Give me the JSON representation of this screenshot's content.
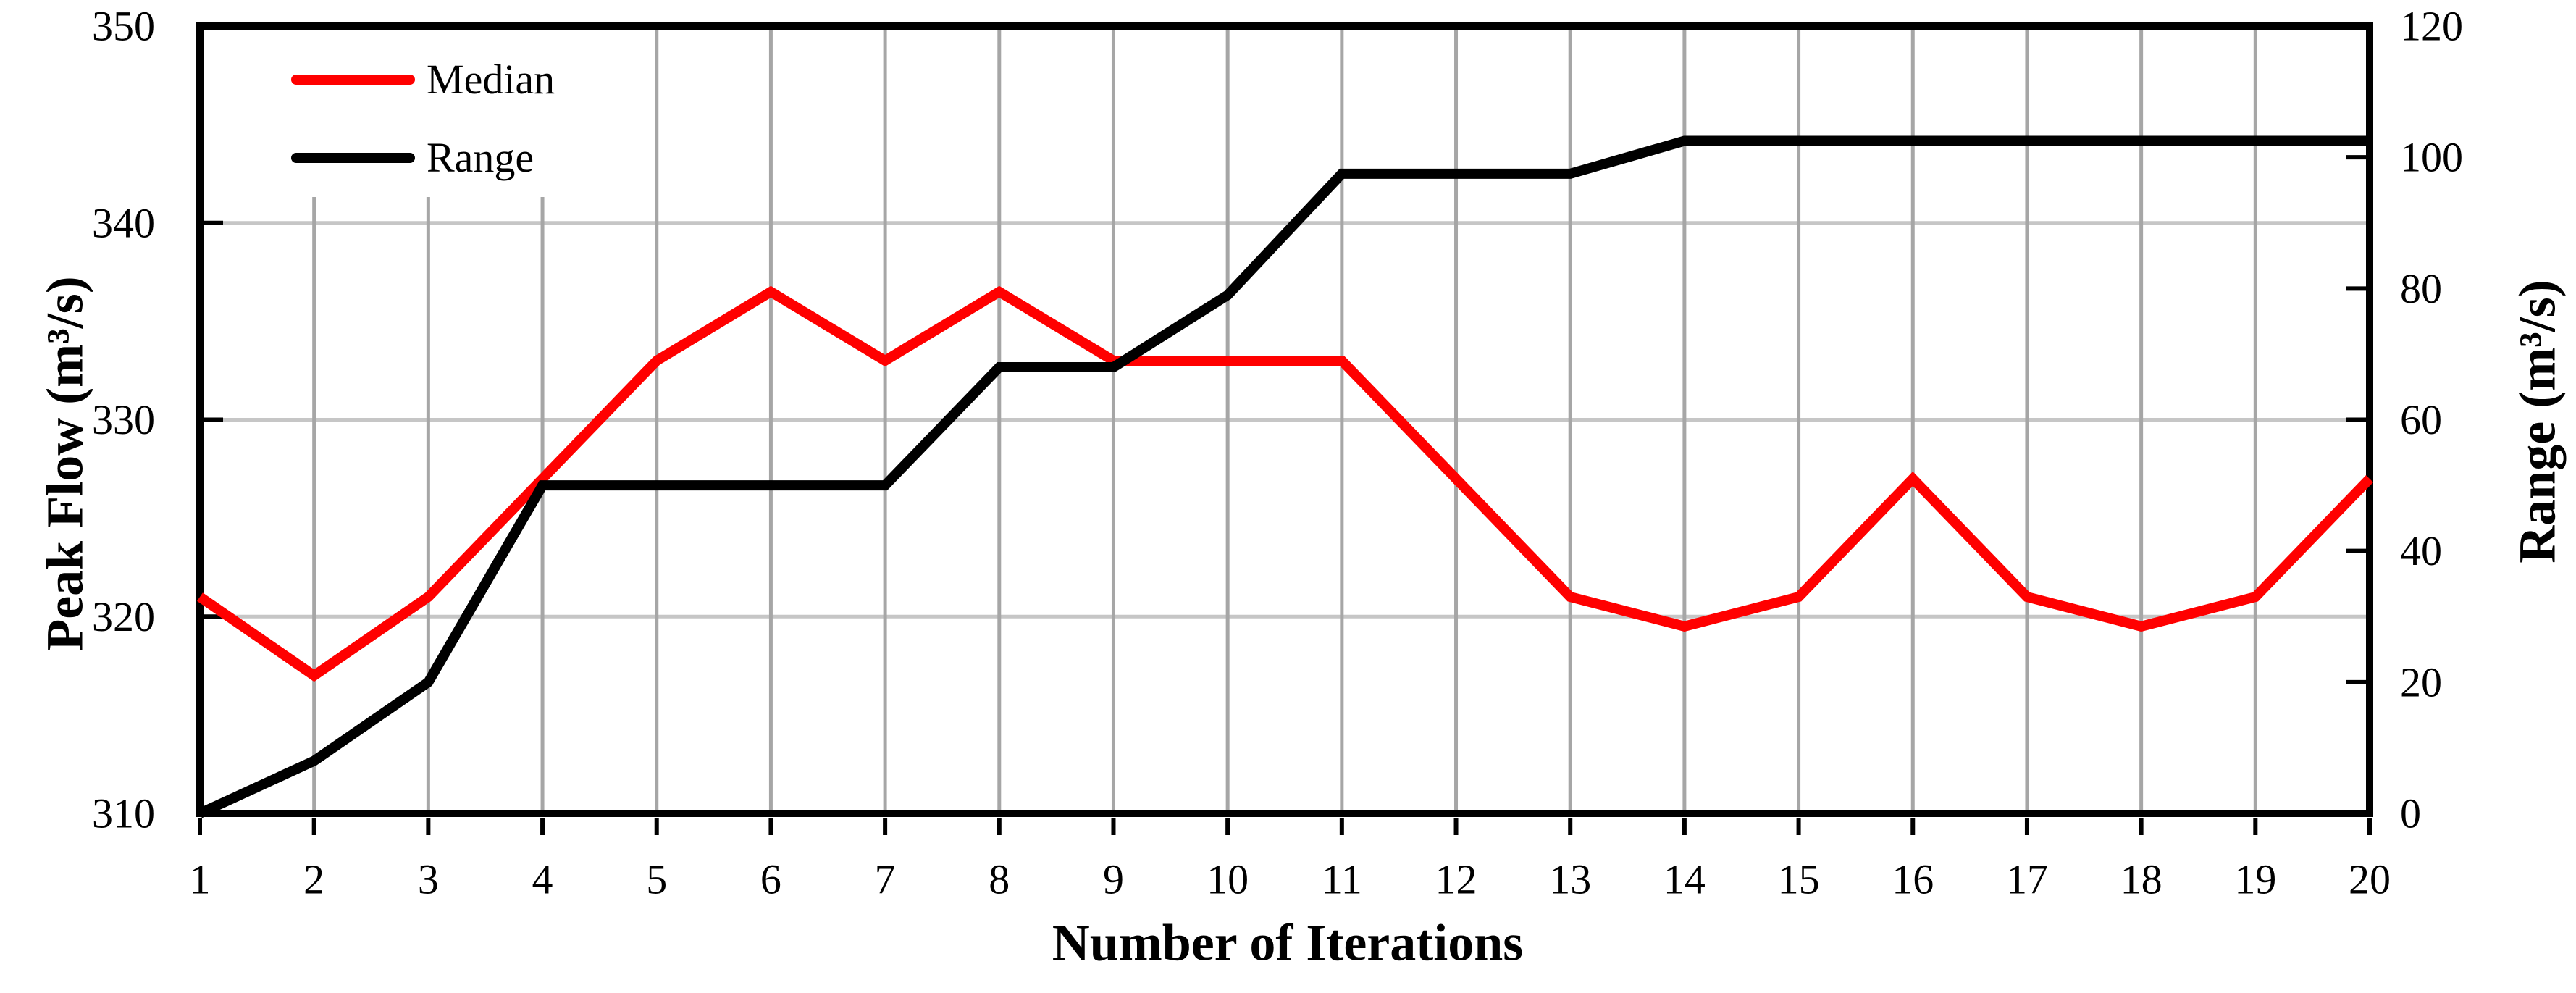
{
  "chart_data": {
    "type": "line",
    "x": [
      1,
      2,
      3,
      4,
      5,
      6,
      7,
      8,
      9,
      10,
      11,
      12,
      13,
      14,
      15,
      16,
      17,
      18,
      19,
      20
    ],
    "series": [
      {
        "name": "Median",
        "color": "#ff0000",
        "axis": "left",
        "values": [
          321,
          317,
          321,
          327,
          333,
          336.5,
          333,
          336.5,
          333,
          333,
          333,
          327,
          321,
          319.5,
          321,
          327,
          321,
          319.5,
          321,
          327
        ]
      },
      {
        "name": "Range",
        "color": "#000000",
        "axis": "right",
        "values": [
          0,
          8,
          20,
          50,
          50,
          50,
          50,
          68,
          68,
          79,
          97.5,
          97.5,
          97.5,
          102.5,
          102.5,
          102.5,
          102.5,
          102.5,
          102.5,
          102.5
        ]
      }
    ],
    "axes": {
      "x": {
        "label": "Number of Iterations",
        "min": 1,
        "max": 20,
        "ticks": [
          "1",
          "2",
          "3",
          "4",
          "5",
          "6",
          "7",
          "8",
          "9",
          "10",
          "11",
          "12",
          "13",
          "14",
          "15",
          "16",
          "17",
          "18",
          "19",
          "20"
        ],
        "gridlines_at": [
          2,
          3,
          4,
          5,
          6,
          7,
          8,
          9,
          10,
          11,
          12,
          13,
          14,
          15,
          16,
          17,
          18,
          19
        ]
      },
      "left": {
        "label": "Peak Flow (m³/s)",
        "min": 310,
        "max": 350,
        "ticks": [
          "350",
          "340",
          "330",
          "320",
          "310"
        ],
        "tick_values": [
          350,
          340,
          330,
          320,
          310
        ],
        "gridlines_at": [
          340,
          330,
          320
        ],
        "tick_marks_at": [
          340,
          330,
          320
        ]
      },
      "right": {
        "label": "Range (m³/s)",
        "min": 0,
        "max": 120,
        "ticks": [
          "120",
          "100",
          "80",
          "60",
          "40",
          "20",
          "0"
        ],
        "tick_values": [
          120,
          100,
          80,
          60,
          40,
          20,
          0
        ],
        "tick_marks_at": [
          100,
          80,
          60,
          40,
          20
        ]
      }
    },
    "legend": {
      "position": "top-left",
      "entries": [
        "Median",
        "Range"
      ]
    },
    "grid": "on",
    "style": {
      "vertical_grid_color": "#a6a6a6",
      "horizontal_grid_color": "#c6c6c6",
      "axis_color": "#000000",
      "background_color": "#ffffff",
      "median_color": "#ff0000",
      "range_color": "#000000"
    }
  }
}
